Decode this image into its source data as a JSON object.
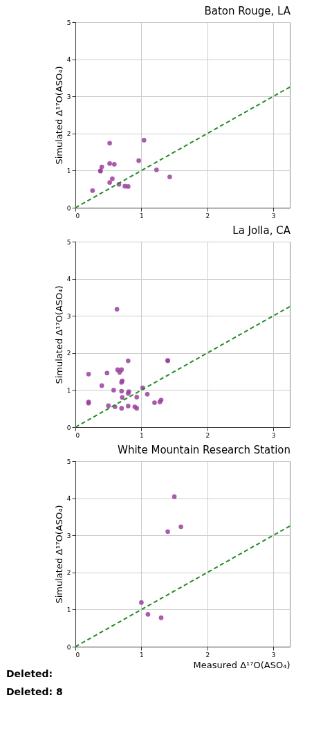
{
  "chart_data": [
    {
      "type": "scatter",
      "title": "Baton Rouge, LA",
      "ylabel": "Simulated Δ¹⁷O(ASO₄)",
      "xlim": [
        0,
        3.25
      ],
      "ylim": [
        0,
        5
      ],
      "xticks": [
        0,
        1,
        2,
        3
      ],
      "yticks": [
        0,
        1,
        2,
        3,
        4,
        5
      ],
      "grid": true,
      "series": [
        {
          "marker": "circle",
          "color": "#9b3f9e",
          "x": [
            0.26,
            0.38,
            0.38,
            0.4,
            0.52,
            0.52,
            0.59,
            0.52,
            0.56,
            0.66,
            0.75,
            0.8,
            0.96,
            1.04,
            1.23,
            1.43
          ],
          "values": [
            0.46,
            0.99,
            0.99,
            1.1,
            1.74,
            1.19,
            1.17,
            0.68,
            0.78,
            0.63,
            0.58,
            0.57,
            1.27,
            1.82,
            1.02,
            0.83
          ]
        },
        {
          "type": "line",
          "color": "#228b22",
          "line_style": "dashed",
          "x": [
            0,
            3.25
          ],
          "values": [
            0,
            3.25
          ]
        }
      ]
    },
    {
      "type": "scatter",
      "title": "La Jolla, CA",
      "ylabel": "Simulated Δ¹⁷O(ASO₄)",
      "xlim": [
        0,
        3.25
      ],
      "ylim": [
        0,
        5
      ],
      "xticks": [
        0,
        1,
        2,
        3
      ],
      "yticks": [
        0,
        1,
        2,
        3,
        4,
        5
      ],
      "grid": true,
      "series": [
        {
          "marker": "circle",
          "color": "#9b3f9e",
          "x": [
            0.63,
            0.2,
            0.2,
            0.2,
            0.48,
            0.4,
            0.5,
            0.58,
            0.6,
            0.64,
            0.67,
            0.7,
            0.71,
            0.7,
            0.7,
            0.71,
            0.7,
            0.8,
            0.81,
            0.8,
            0.8,
            0.9,
            0.93,
            0.93,
            1.02,
            1.09,
            1.2,
            1.28,
            1.3,
            1.4,
            1.4
          ],
          "values": [
            3.18,
            1.43,
            0.68,
            0.65,
            1.46,
            1.12,
            0.58,
            1.0,
            0.55,
            1.55,
            1.48,
            1.55,
            1.25,
            1.21,
            0.97,
            0.8,
            0.51,
            1.79,
            0.96,
            0.91,
            0.57,
            0.55,
            0.51,
            0.81,
            1.06,
            0.89,
            0.66,
            0.68,
            0.73,
            1.8,
            1.79
          ]
        },
        {
          "type": "line",
          "color": "#228b22",
          "line_style": "dashed",
          "x": [
            0,
            3.25
          ],
          "values": [
            0,
            3.25
          ]
        }
      ]
    },
    {
      "type": "scatter",
      "title": "White Mountain Research Station",
      "xlabel": "Measured Δ¹⁷O(ASO₄)",
      "ylabel": "Simulated Δ¹⁷O(ASO₄)",
      "xlim": [
        0,
        3.25
      ],
      "ylim": [
        0,
        5
      ],
      "xticks": [
        0,
        1,
        2,
        3
      ],
      "yticks": [
        0,
        1,
        2,
        3,
        4,
        5
      ],
      "grid": true,
      "annotations": [
        "Deleted:",
        "Deleted: 8"
      ],
      "series": [
        {
          "marker": "circle",
          "color": "#9b3f9e",
          "x": [
            1.0,
            1.1,
            1.3,
            1.4,
            1.5,
            1.6
          ],
          "values": [
            1.19,
            0.87,
            0.78,
            3.1,
            4.04,
            3.23
          ]
        },
        {
          "type": "line",
          "color": "#228b22",
          "line_style": "dashed",
          "x": [
            0,
            3.25
          ],
          "values": [
            0,
            3.25
          ]
        }
      ]
    }
  ]
}
